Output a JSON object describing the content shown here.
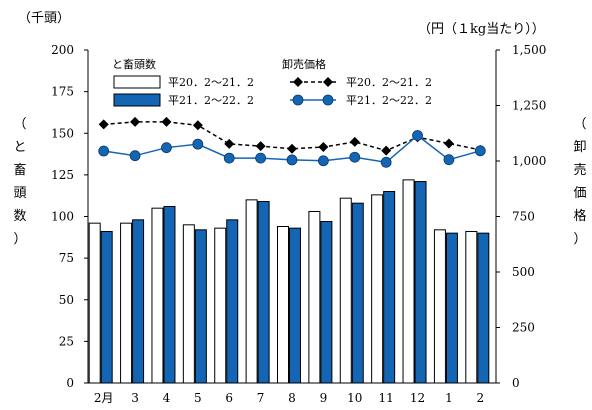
{
  "chart_data": {
    "type": "bar",
    "categories": [
      "2月",
      "3",
      "4",
      "5",
      "6",
      "7",
      "8",
      "9",
      "10",
      "11",
      "12",
      "1",
      "2"
    ],
    "left_axis": {
      "unit": "（千頭）",
      "label_chars": [
        "（",
        "と",
        "畜",
        "頭",
        "数",
        "）"
      ],
      "ylim": [
        0,
        200
      ],
      "ticks": [
        "0",
        "25",
        "50",
        "75",
        "100",
        "125",
        "150",
        "175",
        "200"
      ]
    },
    "right_axis": {
      "unit": "（円（１kg当たり））",
      "label_chars": [
        "（",
        "卸",
        "売",
        "価",
        "格",
        "）"
      ],
      "ylim": [
        0,
        1500
      ],
      "ticks": [
        "0",
        "250",
        "500",
        "750",
        "1,000",
        "1,250",
        "1,500"
      ]
    },
    "bar_legend_title": "と畜頭数",
    "line_legend_title": "卸売価格",
    "bar_series": [
      {
        "name": "平20．2～21．2",
        "color": "#ffffff",
        "values": [
          96,
          96,
          105,
          95,
          93,
          110,
          94,
          103,
          111,
          113,
          122,
          92,
          91
        ]
      },
      {
        "name": "平21．2～22．2",
        "color": "#1565b5",
        "values": [
          91,
          98,
          106,
          92,
          98,
          109,
          93,
          97,
          108,
          115,
          121,
          90,
          90
        ]
      }
    ],
    "line_series": [
      {
        "name": "平20．2～21．2",
        "color": "#000000",
        "marker": "diamond",
        "dashed": true,
        "values": [
          1165,
          1176,
          1176,
          1161,
          1077,
          1067,
          1055,
          1063,
          1086,
          1047,
          1107,
          1079,
          1050
        ]
      },
      {
        "name": "平21．2～22．2",
        "color": "#1565b5",
        "marker": "circle",
        "dashed": false,
        "values": [
          1045,
          1024,
          1060,
          1076,
          1013,
          1013,
          1005,
          1001,
          1017,
          994,
          1115,
          1006,
          1046
        ]
      }
    ]
  }
}
